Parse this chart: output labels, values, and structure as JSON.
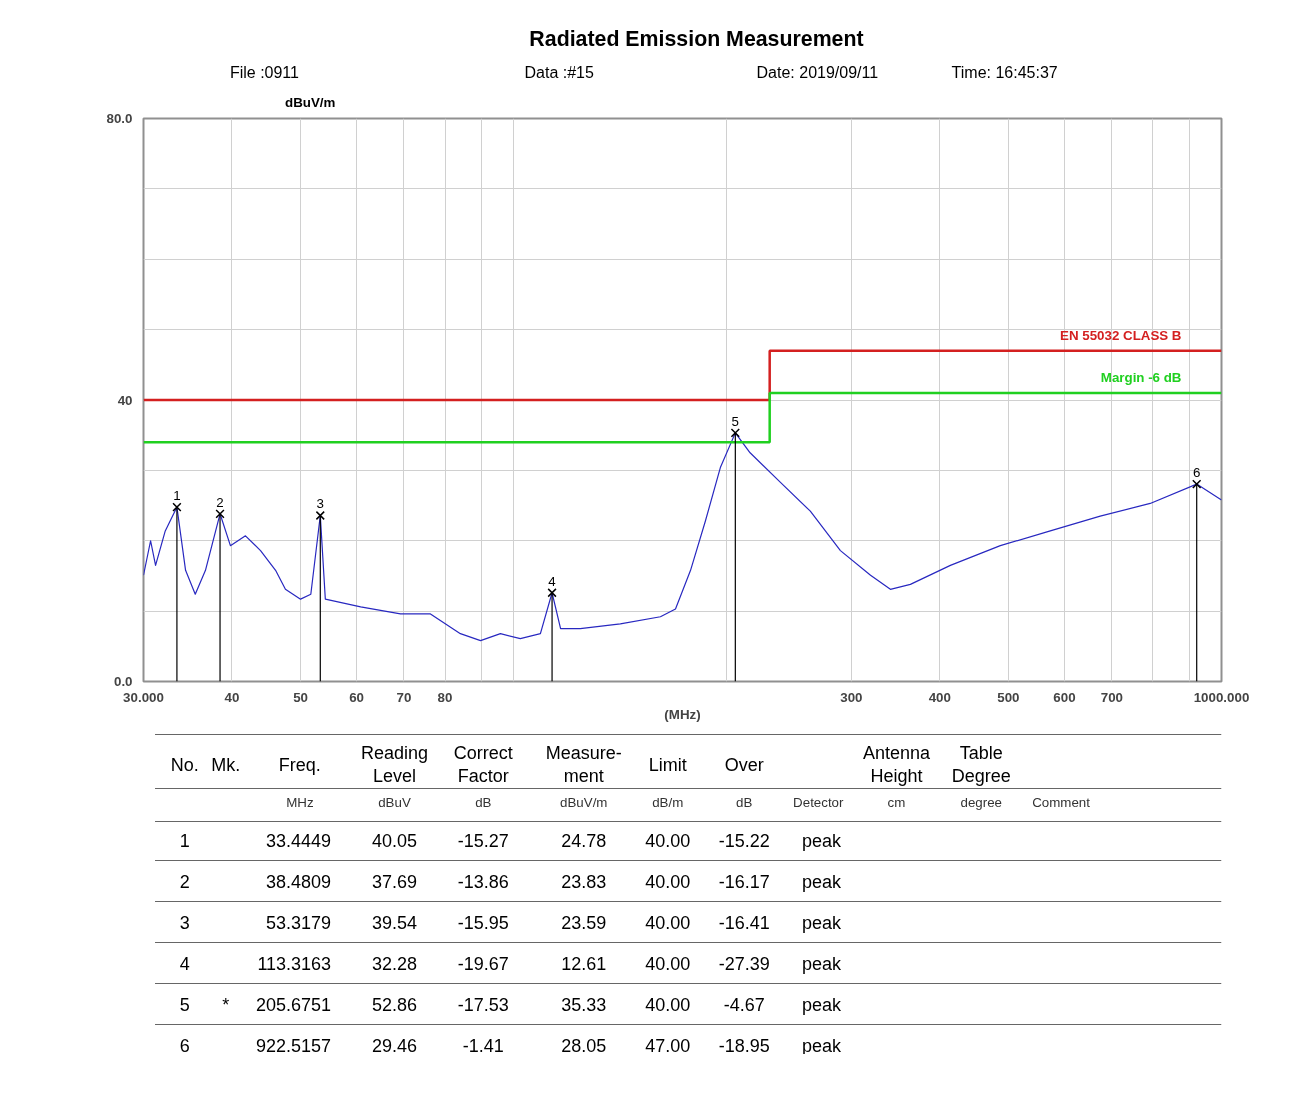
{
  "chart_data": {
    "type": "line",
    "title": "Radiated Emission Measurement",
    "xlabel": "(MHz)",
    "ylabel": "dBuV/m",
    "log": "x",
    "grid": true,
    "xlim": [
      30,
      1000
    ],
    "xticks": [
      {
        "value": 30,
        "label": "30.000"
      },
      40,
      50,
      60,
      70,
      80,
      {
        "value": 90,
        "label": null
      },
      {
        "value": 100,
        "label": null
      },
      {
        "value": 200,
        "label": null
      },
      300,
      400,
      500,
      600,
      700,
      {
        "value": 800,
        "label": null
      },
      {
        "value": 900,
        "label": null
      },
      {
        "value": 1000,
        "label": "1000.000"
      }
    ],
    "ylim": [
      0,
      80
    ],
    "yticks": [
      {
        "value": 0,
        "label": "0.0"
      },
      {
        "value": 10,
        "label": null
      },
      {
        "value": 20,
        "label": null
      },
      {
        "value": 30,
        "label": null
      },
      40,
      {
        "value": 50,
        "label": null
      },
      {
        "value": 60,
        "label": null
      },
      {
        "value": 70,
        "label": null
      },
      {
        "value": 80,
        "label": "80.0"
      }
    ],
    "series": [
      {
        "color": "#2828c0",
        "x": [
          30.0,
          30.7,
          31.2,
          32.2,
          33.4449,
          34.4,
          35.5,
          36.7,
          38.4809,
          39.8,
          41.8,
          43.9,
          46.1,
          47.6,
          50.0,
          51.7,
          53.3179,
          54.2,
          60.8,
          69.2,
          76.3,
          84.1,
          89.8,
          95.8,
          102.2,
          109.1,
          113.3163,
          116.5,
          124.2,
          141.5,
          161.2,
          169.3,
          177.8,
          186.6,
          195.9,
          205.6751,
          215.8,
          238.2,
          262.5,
          289.5,
          319.3,
          340.6,
          363.5,
          414,
          487,
          573,
          674,
          793,
          922.5157,
          1000
        ],
        "values": [
          15.1,
          20.0,
          16.5,
          21.4,
          24.78,
          15.8,
          12.4,
          15.8,
          23.83,
          19.3,
          20.7,
          18.6,
          15.8,
          13.1,
          11.7,
          12.4,
          23.59,
          11.7,
          10.6,
          9.6,
          9.6,
          6.8,
          5.8,
          6.8,
          6.1,
          6.8,
          12.61,
          7.5,
          7.5,
          8.2,
          9.2,
          10.3,
          15.8,
          22.8,
          30.4,
          35.33,
          32.5,
          28.3,
          24.2,
          18.6,
          15.1,
          13.1,
          13.8,
          16.5,
          19.3,
          21.4,
          23.5,
          25.3,
          28.05,
          25.8
        ]
      },
      {
        "type": "step",
        "name": "EN 55032 CLASS B",
        "color": "#d42020",
        "x": [
          30,
          230,
          1000
        ],
        "values": [
          40,
          47,
          47
        ]
      },
      {
        "type": "step",
        "name": "Margin -6 dB",
        "color": "#20d020",
        "x": [
          30,
          230,
          1000
        ],
        "values": [
          34,
          41,
          41
        ]
      },
      {
        "type": "lollipop",
        "color": "#000000",
        "marker": "cross",
        "x": [
          33.4449,
          38.4809,
          53.3179,
          113.3163,
          205.6751,
          922.5157
        ],
        "values": [
          24.78,
          23.83,
          23.59,
          12.61,
          35.33,
          28.05
        ]
      }
    ],
    "annotations": [
      "File :0911",
      "Data :#15",
      "Date: 2019/09/11",
      "Time: 16:45:37",
      {
        "text": "1",
        "x": 33.4449,
        "y": 24.78
      },
      {
        "text": "2",
        "x": 38.4809,
        "y": 23.83
      },
      {
        "text": "3",
        "x": 53.3179,
        "y": 23.59
      },
      {
        "text": "4",
        "x": 113.3163,
        "y": 12.61
      },
      {
        "text": "5",
        "x": 205.6751,
        "y": 35.33
      },
      {
        "text": "6",
        "x": 922.5157,
        "y": 28.05
      },
      "No.",
      "Mk.",
      "Freq.",
      "Reading Level",
      "Correct Factor",
      "Measure-ment",
      "Limit",
      "Over",
      null,
      "Antenna Height",
      "Table Degree",
      null,
      null,
      null,
      "MHz",
      "dBuV",
      "dB",
      "dBuV/m",
      "dB/m",
      "dB",
      "Detector",
      "cm",
      "degree",
      "Comment",
      "1",
      null,
      "33.4449",
      "40.05",
      "-15.27",
      "24.78",
      "40.00",
      "-15.22",
      "peak",
      null,
      null,
      null,
      "2",
      null,
      "38.4809",
      "37.69",
      "-13.86",
      "23.83",
      "40.00",
      "-16.17",
      "peak",
      null,
      null,
      null,
      "3",
      null,
      "53.3179",
      "39.54",
      "-15.95",
      "23.59",
      "40.00",
      "-16.41",
      "peak",
      null,
      null,
      null,
      "4",
      null,
      "113.3163",
      "32.28",
      "-19.67",
      "12.61",
      "40.00",
      "-27.39",
      "peak",
      null,
      null,
      null,
      "5",
      "*",
      "205.6751",
      "52.86",
      "-17.53",
      "35.33",
      "40.00",
      "-4.67",
      "peak",
      null,
      null,
      null,
      "6",
      null,
      "922.5157",
      "29.46",
      "-1.41",
      "28.05",
      "47.00",
      "-18.95",
      "peak",
      null,
      null,
      null
    ]
  }
}
